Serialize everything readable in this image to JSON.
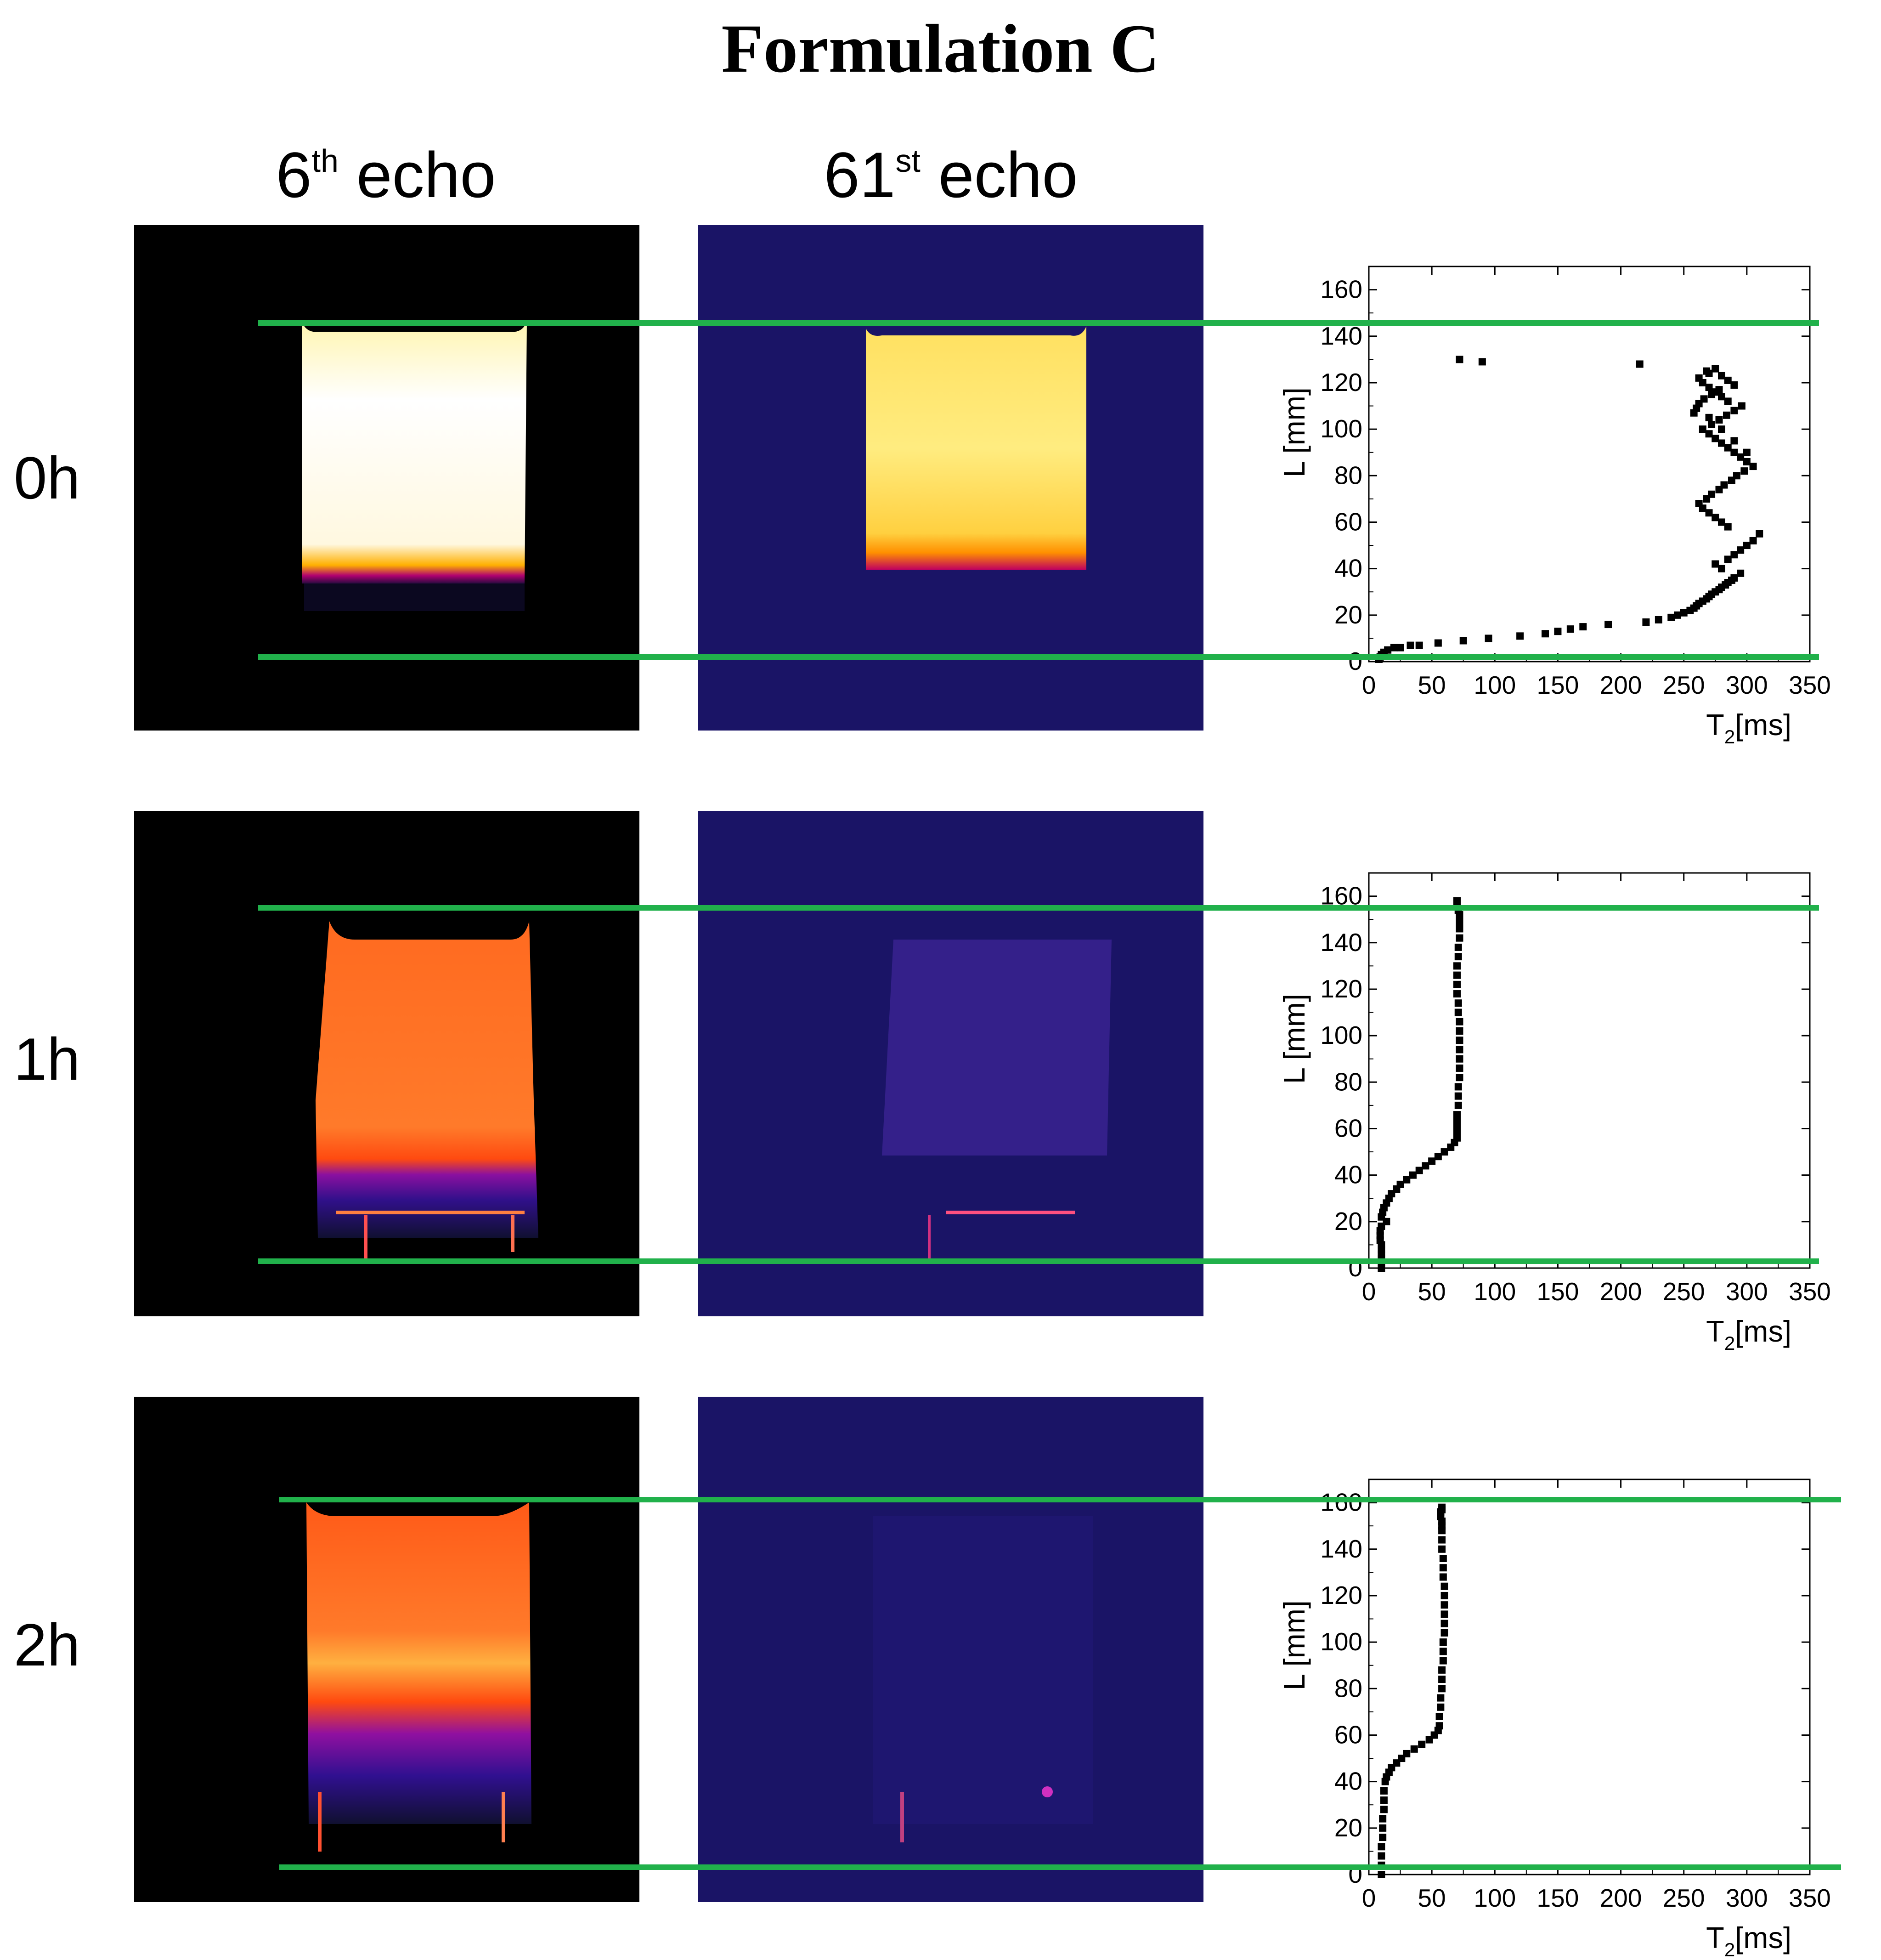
{
  "figure": {
    "title": "Formulation C",
    "columns": [
      {
        "base": "6",
        "sup": "th",
        "suffix": " echo"
      },
      {
        "base": "61",
        "sup": "st",
        "suffix": " echo"
      }
    ],
    "rows": [
      "0h",
      "1h",
      "2h"
    ]
  },
  "colors": {
    "green_line": "#21b14b",
    "marker": "#000000",
    "echo6_background": "#000000",
    "echo61_background": "#1a1466"
  },
  "chart_data": [
    {
      "type": "scatter",
      "row": "0h",
      "xlabel": "T2[ms]",
      "ylabel": "L [mm]",
      "xlim": [
        0,
        350
      ],
      "ylim": [
        0,
        170
      ],
      "xticks": [
        0,
        50,
        100,
        150,
        200,
        250,
        300,
        350
      ],
      "yticks": [
        0,
        20,
        40,
        60,
        80,
        100,
        120,
        140,
        160
      ],
      "reference_lines_L": [
        0,
        145
      ],
      "x": [
        8,
        9,
        10,
        12,
        15,
        20,
        25,
        33,
        40,
        55,
        75,
        95,
        120,
        140,
        150,
        160,
        170,
        190,
        220,
        230,
        240,
        245,
        250,
        255,
        258,
        260,
        262,
        265,
        268,
        270,
        272,
        275,
        278,
        280,
        283,
        285,
        288,
        290,
        295,
        280,
        275,
        285,
        290,
        295,
        300,
        305,
        310,
        285,
        280,
        275,
        270,
        265,
        262,
        268,
        272,
        278,
        282,
        288,
        292,
        298,
        305,
        300,
        295,
        290,
        285,
        280,
        275,
        270,
        265,
        272,
        278,
        284,
        290,
        296,
        285,
        280,
        275,
        270,
        265,
        262,
        270,
        268,
        275,
        280,
        285,
        290,
        278,
        272,
        266,
        262,
        260,
        258,
        270,
        280,
        290,
        300,
        72,
        90,
        215
      ],
      "y": [
        1,
        2,
        3,
        4,
        5,
        6,
        6,
        7,
        7,
        8,
        9,
        10,
        11,
        12,
        13,
        14,
        15,
        16,
        17,
        18,
        19,
        20,
        21,
        22,
        23,
        24,
        25,
        26,
        27,
        28,
        29,
        30,
        31,
        32,
        33,
        34,
        35,
        36,
        38,
        40,
        42,
        44,
        46,
        48,
        50,
        52,
        55,
        58,
        60,
        62,
        64,
        66,
        68,
        70,
        72,
        74,
        76,
        78,
        80,
        82,
        84,
        86,
        88,
        90,
        92,
        94,
        96,
        98,
        100,
        102,
        104,
        106,
        108,
        110,
        112,
        114,
        116,
        118,
        120,
        122,
        124,
        125,
        126,
        123,
        121,
        119,
        117,
        115,
        113,
        111,
        109,
        107,
        105,
        100,
        95,
        90,
        130,
        129,
        128
      ]
    },
    {
      "type": "scatter",
      "row": "1h",
      "xlabel": "T2[ms]",
      "ylabel": "L [mm]",
      "xlim": [
        0,
        350
      ],
      "ylim": [
        0,
        170
      ],
      "xticks": [
        0,
        50,
        100,
        150,
        200,
        250,
        300,
        350
      ],
      "yticks": [
        0,
        20,
        40,
        60,
        80,
        100,
        120,
        140,
        160
      ],
      "reference_lines_L": [
        0,
        155
      ],
      "x": [
        10,
        10,
        10,
        10,
        10,
        10,
        9,
        9,
        9,
        10,
        10,
        11,
        12,
        14,
        16,
        18,
        22,
        25,
        30,
        35,
        40,
        45,
        50,
        55,
        60,
        65,
        68,
        70,
        70,
        70,
        70,
        70,
        70,
        71,
        71,
        71,
        72,
        72,
        72,
        72,
        72,
        72,
        72,
        71,
        71,
        70,
        70,
        70,
        70,
        71,
        71,
        72,
        72,
        72,
        72,
        72,
        71,
        70,
        70,
        14
      ],
      "y": [
        0,
        2,
        4,
        6,
        8,
        10,
        12,
        14,
        16,
        18,
        22,
        24,
        26,
        28,
        30,
        32,
        34,
        36,
        38,
        40,
        42,
        44,
        46,
        48,
        50,
        52,
        54,
        56,
        58,
        60,
        62,
        64,
        66,
        70,
        74,
        78,
        82,
        86,
        90,
        94,
        98,
        102,
        106,
        110,
        114,
        118,
        122,
        126,
        130,
        134,
        138,
        142,
        146,
        148,
        150,
        152,
        154,
        156,
        158,
        20
      ]
    },
    {
      "type": "scatter",
      "row": "2h",
      "xlabel": "T2[ms]",
      "ylabel": "L [mm]",
      "xlim": [
        0,
        350
      ],
      "ylim": [
        0,
        170
      ],
      "xticks": [
        0,
        50,
        100,
        150,
        200,
        250,
        300,
        350
      ],
      "yticks": [
        0,
        20,
        40,
        60,
        80,
        100,
        120,
        140,
        160
      ],
      "reference_lines_L": [
        0,
        160
      ],
      "x": [
        10,
        10,
        10,
        10,
        11,
        11,
        11,
        12,
        12,
        12,
        13,
        14,
        16,
        18,
        22,
        26,
        30,
        36,
        42,
        48,
        52,
        55,
        56,
        56,
        57,
        57,
        58,
        58,
        58,
        59,
        59,
        59,
        60,
        60,
        60,
        60,
        60,
        60,
        59,
        59,
        59,
        58,
        58,
        58,
        58,
        58,
        57,
        57,
        58,
        58
      ],
      "y": [
        0,
        4,
        8,
        12,
        16,
        20,
        24,
        28,
        32,
        36,
        40,
        42,
        44,
        46,
        48,
        50,
        52,
        54,
        56,
        58,
        60,
        62,
        64,
        68,
        72,
        76,
        80,
        84,
        88,
        92,
        96,
        100,
        104,
        108,
        112,
        116,
        120,
        124,
        128,
        132,
        136,
        140,
        144,
        148,
        150,
        152,
        154,
        156,
        158,
        157
      ]
    }
  ]
}
